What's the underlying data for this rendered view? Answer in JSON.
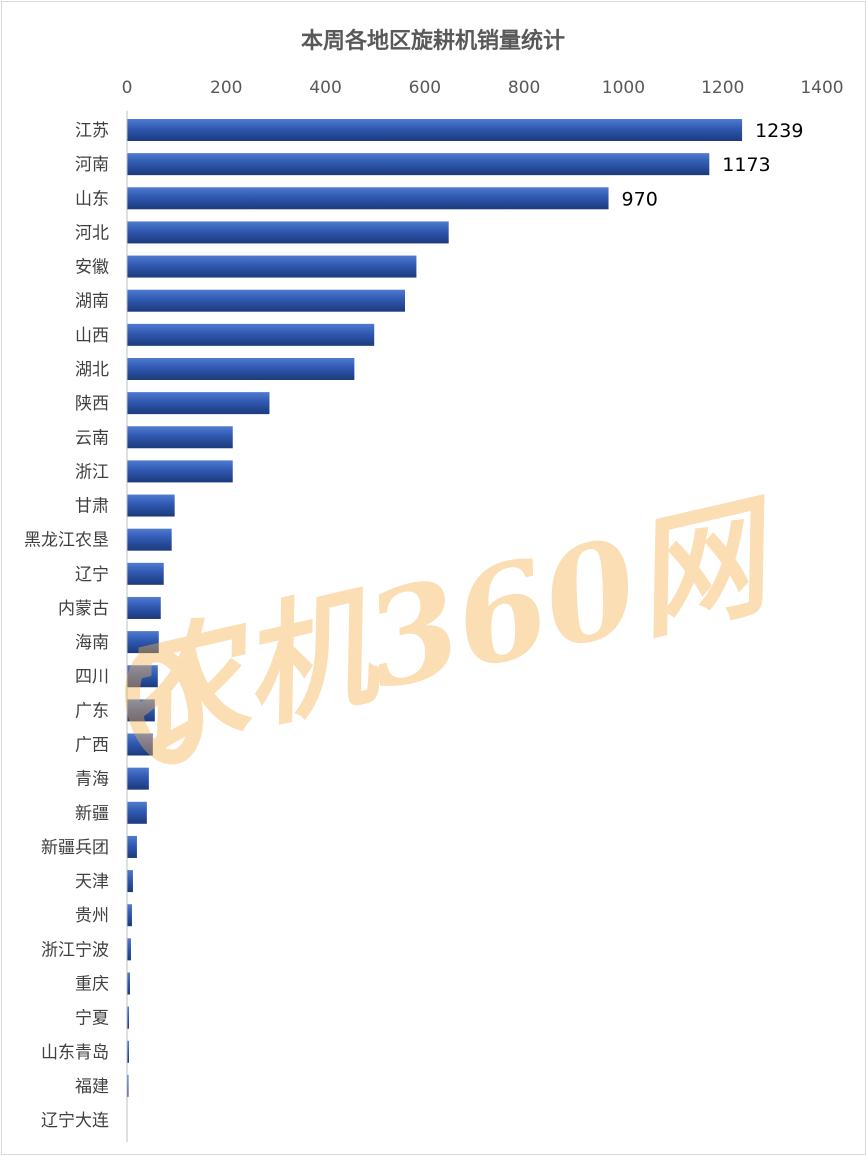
{
  "chart_data": {
    "type": "bar",
    "orientation": "horizontal",
    "title": "本周各地区旋耕机销量统计",
    "xlabel": "",
    "ylabel": "",
    "xlim": [
      0,
      1400
    ],
    "xticks": [
      0,
      200,
      400,
      600,
      800,
      1000,
      1200,
      1400
    ],
    "axis_position": "top",
    "grid": false,
    "legend": "none",
    "categories": [
      "江苏",
      "河南",
      "山东",
      "河北",
      "安徽",
      "湖南",
      "山西",
      "湖北",
      "陕西",
      "云南",
      "浙江",
      "甘肃",
      "黑龙江农垦",
      "辽宁",
      "内蒙古",
      "海南",
      "四川",
      "广东",
      "广西",
      "青海",
      "新疆",
      "新疆兵团",
      "天津",
      "贵州",
      "浙江宁波",
      "重庆",
      "宁夏",
      "山东青岛",
      "福建",
      "辽宁大连"
    ],
    "values": [
      1239,
      1173,
      970,
      648,
      583,
      560,
      498,
      458,
      287,
      213,
      213,
      96,
      90,
      74,
      68,
      64,
      62,
      56,
      52,
      44,
      40,
      20,
      12,
      10,
      8,
      6,
      4,
      4,
      3,
      1
    ],
    "data_labels": {
      "0": "1239",
      "1": "1173",
      "2": "970"
    },
    "bar_color": "#2f58b0",
    "bar_color_dark": "#1c3a7c"
  },
  "watermark": {
    "text": "农机360网",
    "color": "#f6b14f"
  }
}
